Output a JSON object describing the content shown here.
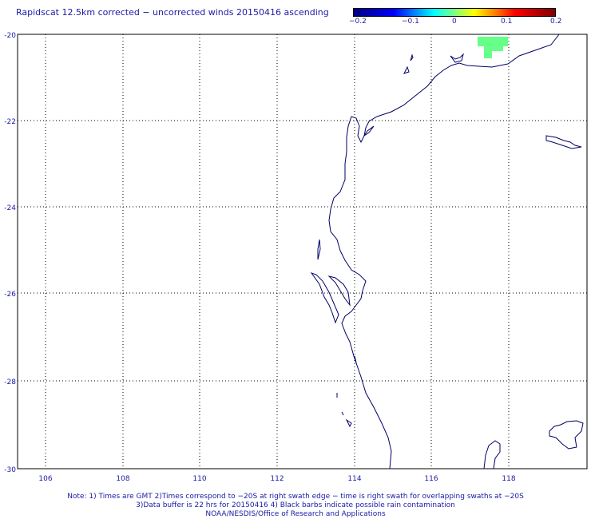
{
  "title": "Rapidscat 12.5km corrected − uncorrected winds 20150416 ascending",
  "colorbar": {
    "labels": [
      "−0.2",
      "−0.1",
      "0",
      "0.1",
      "0.2"
    ],
    "stops": [
      "#000080",
      "#0000ff",
      "#00ffff",
      "#ffff00",
      "#ff0000",
      "#800000"
    ]
  },
  "axes": {
    "x_ticks": [
      "106",
      "108",
      "110",
      "112",
      "114",
      "116",
      "118"
    ],
    "y_ticks": [
      "-20",
      "-22",
      "-24",
      "-26",
      "-28",
      "-30"
    ]
  },
  "notes": [
    "Note: 1) Times are GMT 2)Times correspond to −20S at right swath edge − time is right swath for overlapping swaths at −20S",
    "3)Data buffer is 22 hrs for 20150416 4) Black barbs indicate possible rain contamination",
    "NOAA/NESDIS/Office of Research and Applications"
  ],
  "colors": {
    "text": "#1a1aa6",
    "coastline": "#000066",
    "grid": "#000000",
    "wind_patch": "#66ff88"
  }
}
